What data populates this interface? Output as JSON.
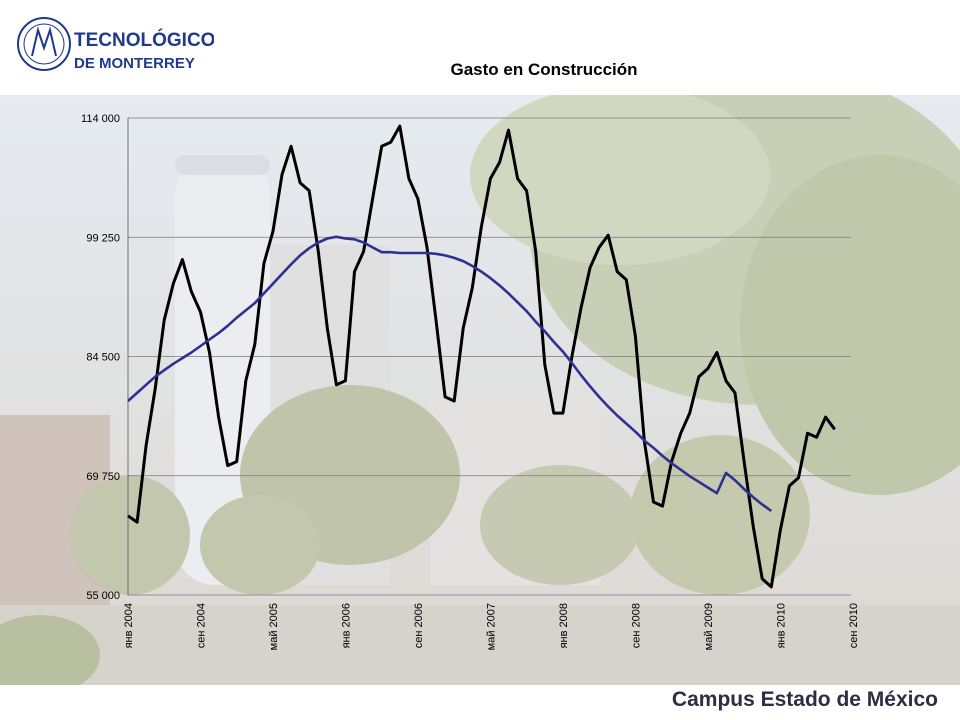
{
  "logo": {
    "line1": "TECNOLÓGICO",
    "line2": "DE MONTERREY",
    "color": "#1f3a8a"
  },
  "footer": {
    "campus": "Campus Estado de México"
  },
  "chart_data": {
    "type": "line",
    "title": "Gasto en Construcción",
    "xlabel": "",
    "ylabel": "",
    "ylim": [
      55000,
      114000
    ],
    "yticks": [
      55000,
      69750,
      84500,
      99250,
      114000
    ],
    "ytick_labels": [
      "55 000",
      "69 750",
      "84 500",
      "99 250",
      "114 000"
    ],
    "xtick_labels": [
      "янв 2004",
      "сен 2004",
      "май 2005",
      "янв 2006",
      "сен 2006",
      "май 2007",
      "янв 2008",
      "сен 2008",
      "май 2009",
      "янв 2010",
      "сен 2010"
    ],
    "xtick_index": [
      0,
      8,
      16,
      24,
      32,
      40,
      48,
      56,
      64,
      72,
      80
    ],
    "grid": "horizontal",
    "series": [
      {
        "color": "#000000",
        "values": [
          64800,
          64000,
          73500,
          80500,
          89000,
          93500,
          96500,
          92500,
          90000,
          85000,
          77000,
          71000,
          71500,
          81500,
          86000,
          96000,
          100000,
          107000,
          110500,
          106000,
          105000,
          97500,
          88000,
          81000,
          81500,
          95000,
          97500,
          104000,
          110500,
          111000,
          113000,
          106500,
          104000,
          98000,
          89000,
          79500,
          79000,
          88000,
          93000,
          100500,
          106500,
          108500,
          112500,
          106500,
          105000,
          97500,
          83500,
          77500,
          77500,
          84500,
          90500,
          95500,
          98000,
          99500,
          95000,
          94000,
          87000,
          74000,
          66500,
          66000,
          71500,
          75000,
          77500,
          82000,
          83000,
          85000,
          81500,
          80000,
          71500,
          63500,
          57000,
          56000,
          63000,
          68500,
          69500,
          75000,
          74500,
          77000,
          75500
        ],
        "dash": "none"
      },
      {
        "color": "#2e3192",
        "values": [
          79000,
          80000,
          81000,
          82000,
          82800,
          83600,
          84300,
          85000,
          85800,
          86600,
          87400,
          88300,
          89300,
          90200,
          91100,
          92300,
          93500,
          94700,
          95900,
          97000,
          97900,
          98600,
          99100,
          99300,
          99100,
          99000,
          98600,
          98000,
          97400,
          97400,
          97300,
          97300,
          97300,
          97300,
          97200,
          97000,
          96700,
          96300,
          95700,
          95000,
          94200,
          93300,
          92300,
          91200,
          90100,
          88800,
          87600,
          86300,
          85100,
          83700,
          82200,
          80800,
          79500,
          78300,
          77200,
          76200,
          75200,
          74100,
          73200,
          72200,
          71300,
          70500,
          69700,
          69000,
          68300,
          67600,
          70100,
          69200,
          68100,
          67100,
          66200,
          65400
        ]
      }
    ]
  }
}
